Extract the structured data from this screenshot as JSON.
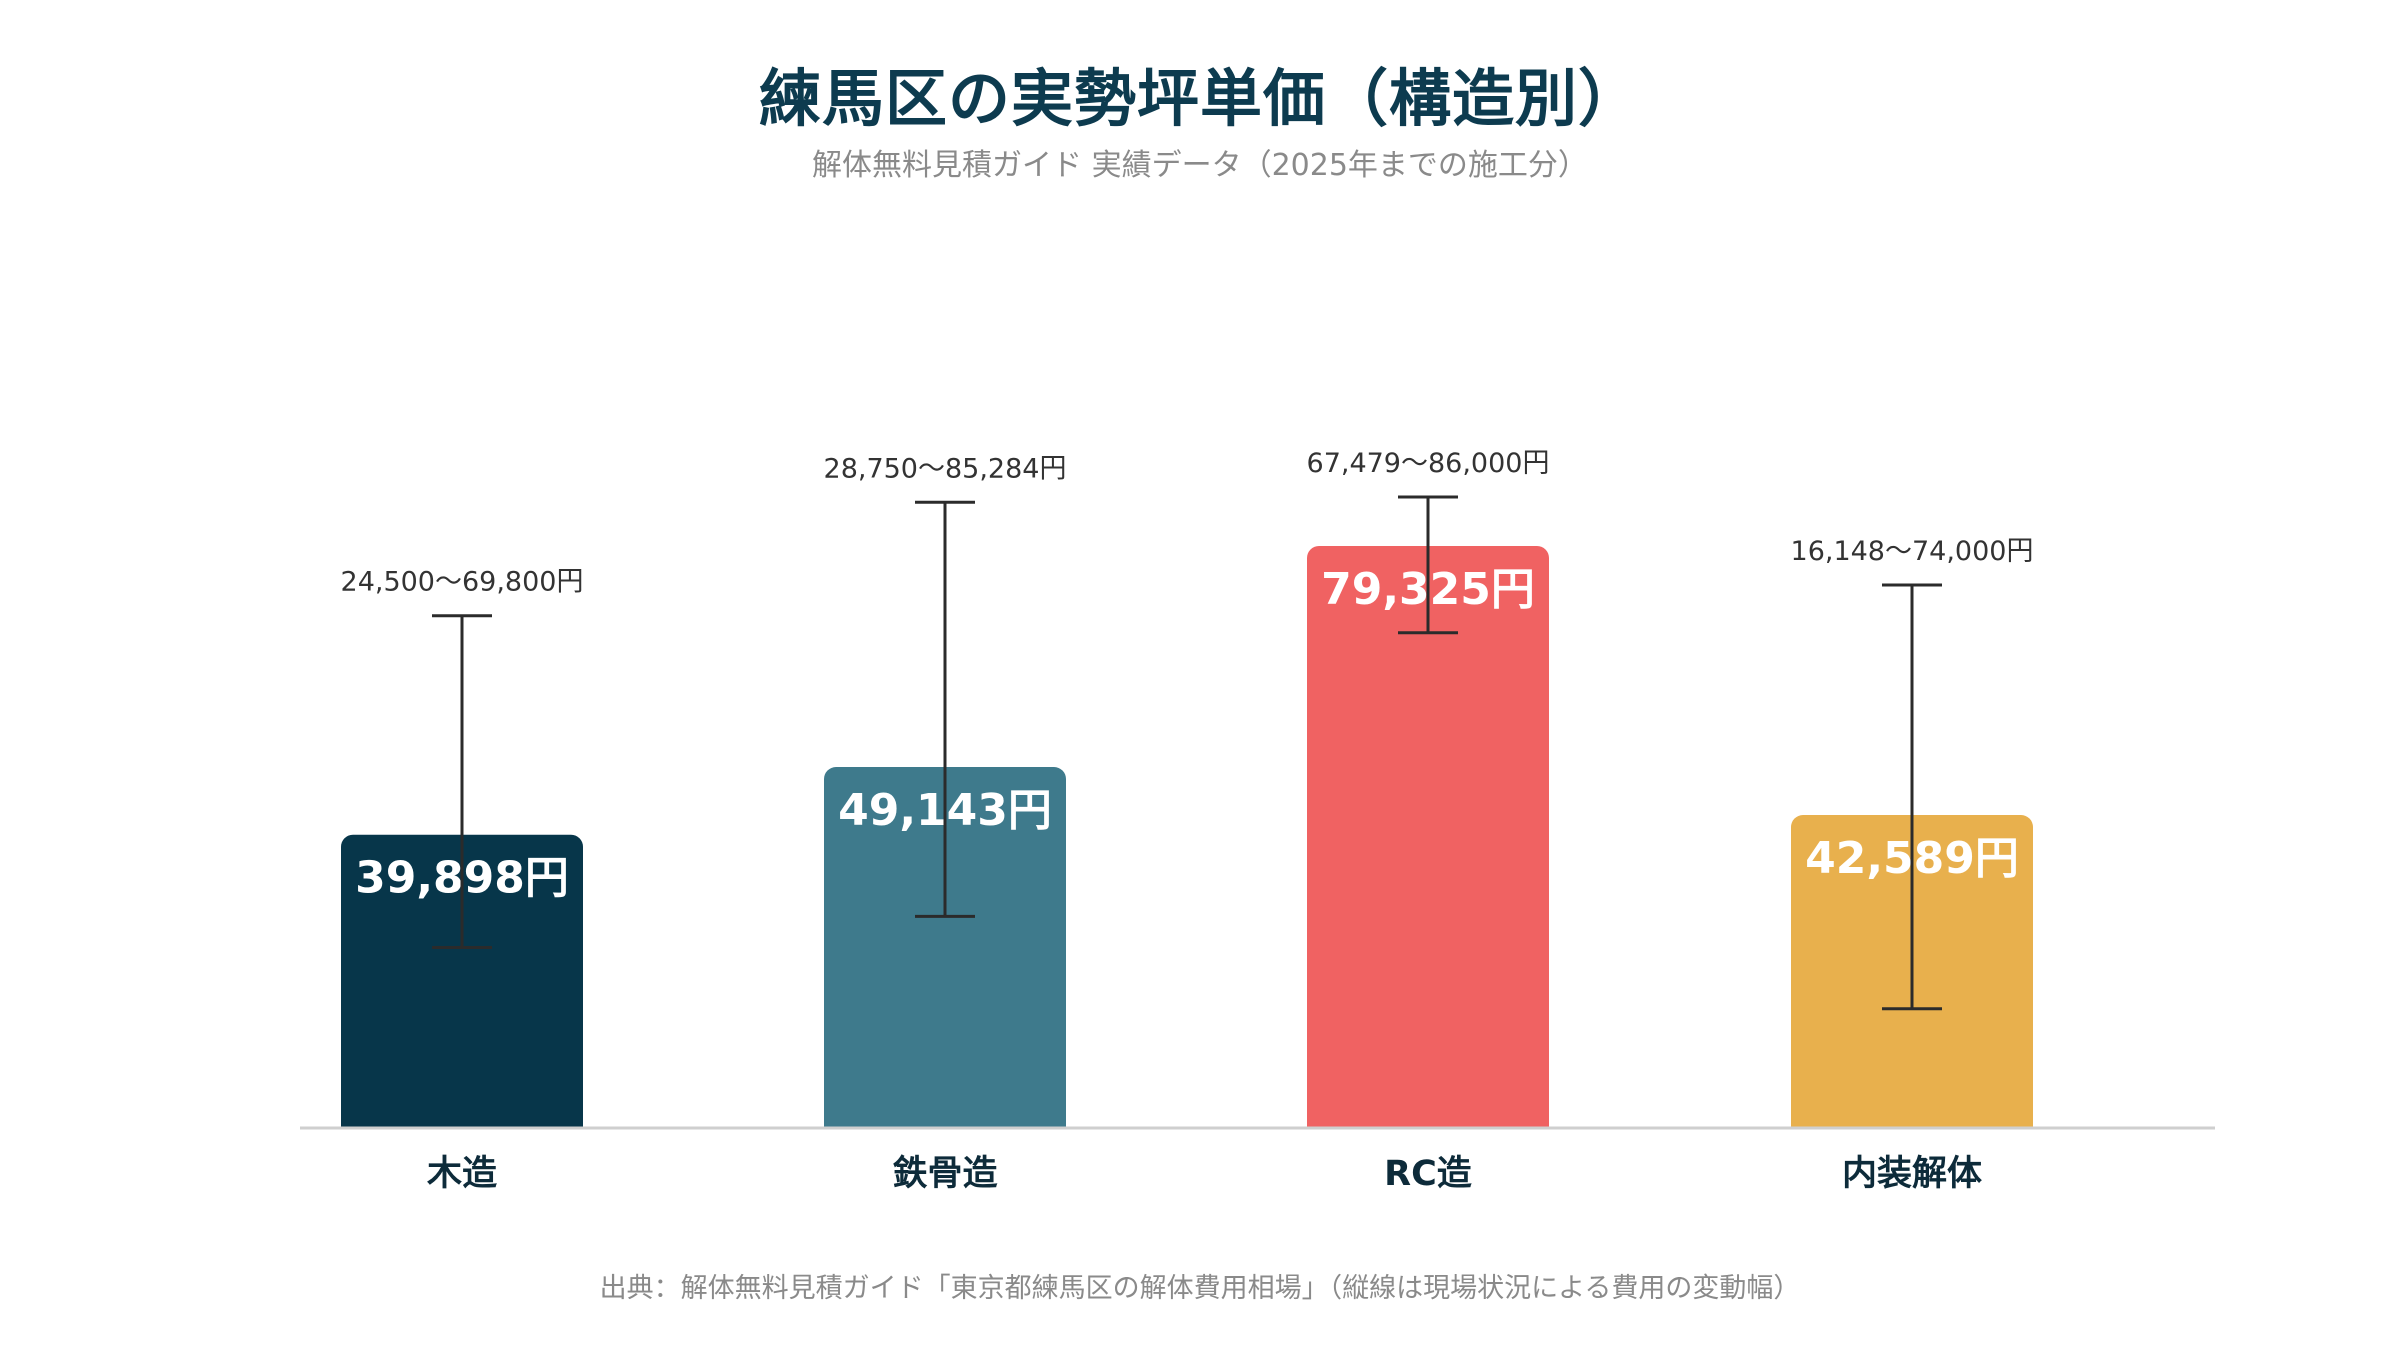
{
  "chart_data": {
    "type": "bar",
    "title": "練馬区の実勢坪単価（構造別）",
    "subtitle": "解体無料見積ガイド 実績データ（2025年までの施工分）",
    "footer": "出典：解体無料見積ガイド「東京都練馬区の解体費用相場」（縦線は現場状況による費用の変動幅）",
    "categories": [
      "木造",
      "鉄骨造",
      "RC造",
      "内装解体"
    ],
    "values": [
      39898,
      49143,
      79325,
      42589
    ],
    "value_labels": [
      "39,898円",
      "49,143円",
      "79,325円",
      "42,589円"
    ],
    "ranges": [
      [
        24500,
        69800
      ],
      [
        28750,
        85284
      ],
      [
        67479,
        86000
      ],
      [
        16148,
        74000
      ]
    ],
    "range_labels": [
      "24,500〜69,800円",
      "28,750〜85,284円",
      "67,479〜86,000円",
      "16,148〜74,000円"
    ],
    "colors": [
      "#07364a",
      "#3e7a8c",
      "#f06262",
      "#e8b04d"
    ],
    "ylim": [
      0,
      100000
    ],
    "grid": false,
    "legend": "none"
  }
}
